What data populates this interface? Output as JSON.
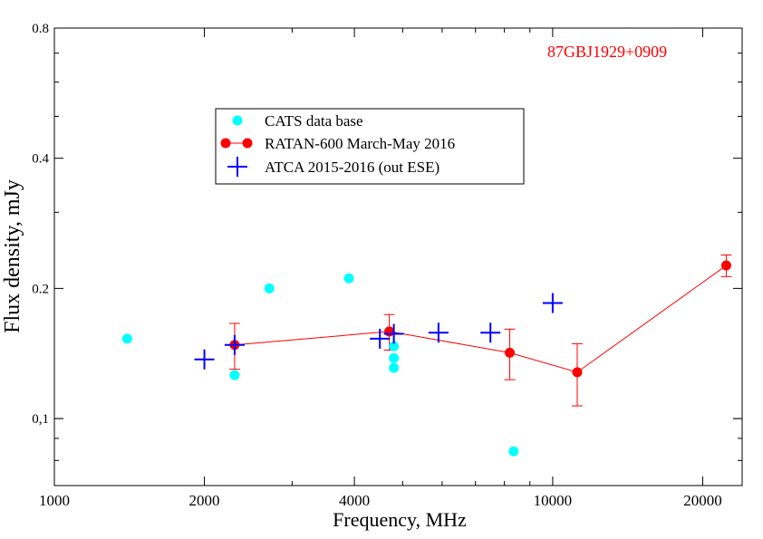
{
  "chart_data": {
    "type": "scatter",
    "title": "87GBJ1929+0909",
    "xlabel": "Frequency,   MHz",
    "ylabel": "Flux density, mJy",
    "xscale": "log",
    "yscale": "log",
    "xlim": [
      1000,
      24000
    ],
    "ylim": [
      0.07,
      0.8
    ],
    "xticks": [
      {
        "value": 1000,
        "label": "1000"
      },
      {
        "value": 2000,
        "label": "2000"
      },
      {
        "value": 4000,
        "label": "4000"
      },
      {
        "value": 10000,
        "label": "10000"
      },
      {
        "value": 20000,
        "label": "20000"
      }
    ],
    "yticks": [
      {
        "value": 0.1,
        "label": "0,1"
      },
      {
        "value": 0.2,
        "label": "0.2"
      },
      {
        "value": 0.4,
        "label": "0.4"
      },
      {
        "value": 0.8,
        "label": "0.8"
      }
    ],
    "grid": false,
    "legend_position": "upper-left",
    "title_color": "#ff0000",
    "series": [
      {
        "name": "CATS data base",
        "marker": "circle",
        "line": false,
        "color": "#00ffff",
        "points": [
          {
            "x": 1400,
            "y": 0.153
          },
          {
            "x": 2300,
            "y": 0.126
          },
          {
            "x": 2700,
            "y": 0.2
          },
          {
            "x": 3900,
            "y": 0.211
          },
          {
            "x": 4800,
            "y": 0.147
          },
          {
            "x": 4800,
            "y": 0.138
          },
          {
            "x": 4800,
            "y": 0.131
          },
          {
            "x": 8350,
            "y": 0.084
          }
        ]
      },
      {
        "name": "RATAN-600 March-May 2016",
        "marker": "circle",
        "line": true,
        "color": "#ff0000",
        "points": [
          {
            "x": 2300,
            "y": 0.148,
            "err": 0.018
          },
          {
            "x": 4700,
            "y": 0.159,
            "err": 0.015
          },
          {
            "x": 8200,
            "y": 0.142,
            "err": 0.019
          },
          {
            "x": 11200,
            "y": 0.128,
            "err": 0.021
          },
          {
            "x": 22300,
            "y": 0.226,
            "err": 0.013
          }
        ]
      },
      {
        "name": "ATCA 2015-2016 (out  ESE)",
        "marker": "plus",
        "line": false,
        "color": "#0000ff",
        "points": [
          {
            "x": 2000,
            "y": 0.137
          },
          {
            "x": 2300,
            "y": 0.148
          },
          {
            "x": 4500,
            "y": 0.153
          },
          {
            "x": 4800,
            "y": 0.157
          },
          {
            "x": 5900,
            "y": 0.158
          },
          {
            "x": 7500,
            "y": 0.158
          },
          {
            "x": 10000,
            "y": 0.185
          }
        ]
      }
    ]
  }
}
